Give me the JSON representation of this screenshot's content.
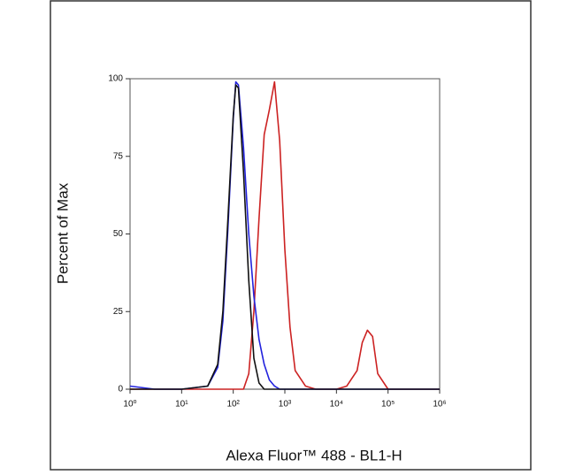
{
  "chart_data": {
    "type": "line",
    "xlabel": "Alexa Fluor™ 488 - BL1-H",
    "ylabel": "Percent of Max",
    "log_x": true,
    "xlim": [
      1,
      1000000
    ],
    "ylim": [
      0,
      100
    ],
    "xticks": [
      {
        "value": 1,
        "label": "10⁰"
      },
      {
        "value": 10,
        "label": "10¹"
      },
      {
        "value": 100,
        "label": "10²"
      },
      {
        "value": 1000,
        "label": "10³"
      },
      {
        "value": 10000,
        "label": "10⁴"
      },
      {
        "value": 100000,
        "label": "10⁵"
      },
      {
        "value": 1000000,
        "label": "10⁶"
      }
    ],
    "yticks": [
      0,
      25,
      50,
      75,
      100
    ],
    "x": [
      1,
      3,
      10,
      32,
      50,
      63,
      79,
      100,
      112,
      126,
      158,
      200,
      251,
      316,
      398,
      501,
      631,
      794,
      1000,
      1259,
      1585,
      2512,
      3981,
      6310,
      10000,
      15849,
      25119,
      31623,
      39811,
      50119,
      63096,
      100000,
      316228,
      1000000
    ],
    "series": [
      {
        "color": "#cc2222",
        "values": [
          0,
          0,
          0,
          0,
          0,
          0,
          0,
          0,
          0,
          0,
          0,
          5,
          25,
          55,
          82,
          90,
          99,
          80,
          45,
          20,
          6,
          1,
          0,
          0,
          0,
          1,
          6,
          15,
          19,
          17,
          5,
          0,
          0,
          0
        ]
      },
      {
        "color": "#2222dd",
        "values": [
          1,
          0,
          0,
          1,
          7,
          22,
          52,
          87,
          99,
          98,
          78,
          50,
          30,
          16,
          8,
          3,
          1,
          0,
          0,
          0,
          0,
          0,
          0,
          0,
          0,
          0,
          0,
          0,
          0,
          0,
          0,
          0,
          0,
          0
        ]
      },
      {
        "color": "#111111",
        "values": [
          0,
          0,
          0,
          1,
          8,
          25,
          55,
          88,
          98,
          97,
          70,
          35,
          10,
          2,
          0,
          0,
          0,
          0,
          0,
          0,
          0,
          0,
          0,
          0,
          0,
          0,
          0,
          0,
          0,
          0,
          0,
          0,
          0,
          0
        ]
      }
    ]
  }
}
